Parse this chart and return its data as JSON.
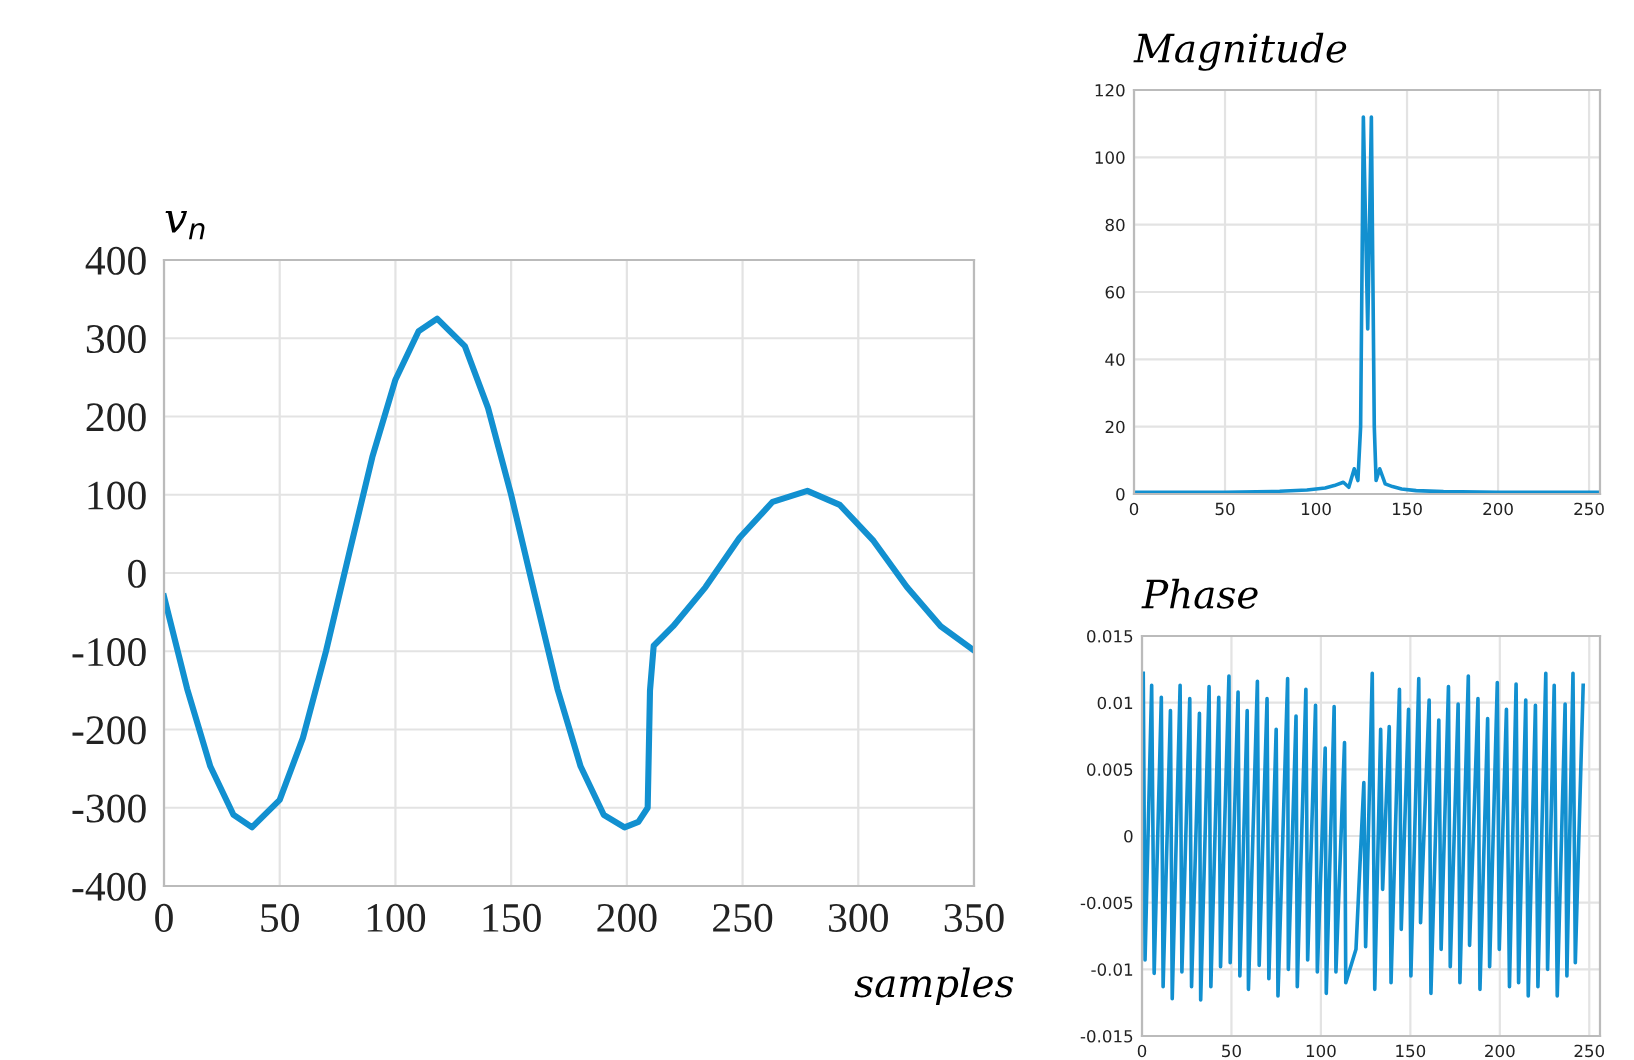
{
  "chart_data": [
    {
      "type": "line",
      "ylabel": "v$_{n}$",
      "xlabel": "samples",
      "xlim": [
        0,
        350
      ],
      "ylim": [
        -400,
        400
      ],
      "xticks": [
        0,
        50,
        100,
        150,
        200,
        250,
        300,
        350
      ],
      "yticks": [
        -400,
        -300,
        -200,
        -100,
        0,
        100,
        200,
        300,
        400
      ],
      "grid": true,
      "series": [
        {
          "color": "#1290d0",
          "x": [
            0,
            10,
            20,
            30,
            38,
            50,
            60,
            70,
            80,
            90,
            100,
            110,
            118,
            130,
            140,
            150,
            160,
            170,
            180,
            190,
            199,
            205,
            209,
            210,
            211.6,
            220,
            234,
            248.7,
            263,
            278,
            292,
            306.6,
            321,
            335.6,
            350
          ],
          "values": [
            -30,
            -148,
            -247,
            -309,
            -325,
            -290,
            -211,
            -100,
            25,
            148,
            247,
            309,
            325,
            290,
            211,
            100,
            -25,
            -148,
            -247,
            -309,
            -325,
            -318,
            -300,
            -150,
            -93,
            -68,
            -18,
            45,
            91,
            105,
            87,
            41,
            -18,
            -68,
            -99
          ]
        }
      ]
    },
    {
      "type": "line",
      "title": "Magnitude",
      "xlim": [
        0,
        256
      ],
      "ylim": [
        0,
        120
      ],
      "xticks": [
        0,
        50,
        100,
        150,
        200,
        250
      ],
      "yticks": [
        0,
        20,
        40,
        60,
        80,
        100,
        120
      ],
      "grid": true,
      "series": [
        {
          "color": "#1290d0",
          "x": [
            0,
            50,
            80,
            95,
            100,
            105,
            110,
            115,
            118,
            121,
            123,
            124.5,
            126,
            128.4,
            130.4,
            132,
            133,
            135,
            138,
            142,
            147,
            155,
            170,
            200,
            256
          ],
          "values": [
            0.5,
            0.5,
            0.8,
            1.2,
            1.5,
            1.8,
            2.5,
            3.5,
            2,
            7.5,
            4,
            20,
            112,
            49,
            112,
            20,
            4,
            7.5,
            3,
            2.2,
            1.5,
            1,
            0.7,
            0.5,
            0.5
          ]
        }
      ]
    },
    {
      "type": "line",
      "title": "Phase",
      "xlim": [
        0,
        256
      ],
      "ylim": [
        -0.015,
        0.015
      ],
      "xticks": [
        0,
        50,
        100,
        150,
        200,
        250
      ],
      "yticks": [
        -0.015,
        -0.01,
        -0.005,
        0,
        0.005,
        0.01,
        0.015
      ],
      "grid": true,
      "series": [
        {
          "color": "#1290d0",
          "x": [
            0.7,
            1.7,
            5.4,
            6.8,
            10.8,
            11.8,
            15.9,
            16.9,
            21.3,
            22.3,
            26.7,
            27.7,
            32.1,
            32.8,
            37.5,
            38.5,
            42.9,
            43.9,
            48.6,
            49.3,
            53.7,
            54.7,
            58.8,
            59.5,
            64.5,
            65.5,
            69.9,
            70.9,
            75.0,
            76.0,
            81.4,
            81.8,
            86.1,
            86.8,
            91.6,
            92.6,
            97.0,
            98.0,
            102.4,
            103.0,
            107.4,
            108.4,
            113.2,
            113.9,
            119.6,
            124.0,
            125.0,
            128.7,
            130.1,
            133.4,
            134.5,
            138.2,
            139.2,
            143.9,
            144.9,
            149.0,
            150.3,
            154.7,
            155.7,
            160.5,
            161.5,
            165.9,
            167.2,
            171.3,
            172.3,
            176.7,
            177.7,
            182.4,
            183.1,
            187.8,
            188.9,
            193.2,
            194.3,
            198.6,
            199.7,
            203.7,
            205.4,
            209.1,
            210.5,
            214.5,
            215.9,
            219.9,
            221.3,
            225.7,
            226.7,
            230.4,
            232.1,
            236.5,
            237.5,
            240.9,
            242.2,
            246.6
          ],
          "values": [
            0.0122,
            -0.0093,
            0.0113,
            -0.0103,
            0.0104,
            -0.0113,
            0.0094,
            -0.0122,
            0.0113,
            -0.0102,
            0.0103,
            -0.0113,
            0.0092,
            -0.0123,
            0.0112,
            -0.0113,
            0.0104,
            -0.0098,
            0.012,
            -0.0095,
            0.0108,
            -0.0105,
            0.0094,
            -0.0115,
            0.0116,
            -0.0097,
            0.0103,
            -0.0107,
            0.008,
            -0.012,
            0.0118,
            -0.01,
            0.009,
            -0.0113,
            0.011,
            -0.0093,
            0.0098,
            -0.0102,
            0.0066,
            -0.0118,
            0.0097,
            -0.0102,
            0.007,
            -0.011,
            -0.0085,
            0.004,
            -0.0083,
            0.0122,
            -0.0115,
            0.008,
            -0.004,
            0.0082,
            -0.011,
            0.011,
            -0.007,
            0.0095,
            -0.0105,
            0.0118,
            -0.0065,
            0.0102,
            -0.0118,
            0.0087,
            -0.0085,
            0.0112,
            -0.0098,
            0.0099,
            -0.011,
            0.012,
            -0.0082,
            0.0103,
            -0.0115,
            0.0088,
            -0.0098,
            0.0115,
            -0.0085,
            0.0095,
            -0.0113,
            0.0114,
            -0.011,
            0.0102,
            -0.012,
            0.0098,
            -0.0113,
            0.0122,
            -0.01,
            0.0113,
            -0.012,
            0.0099,
            -0.0105,
            0.0122,
            -0.0095,
            0.0113
          ]
        }
      ]
    }
  ]
}
